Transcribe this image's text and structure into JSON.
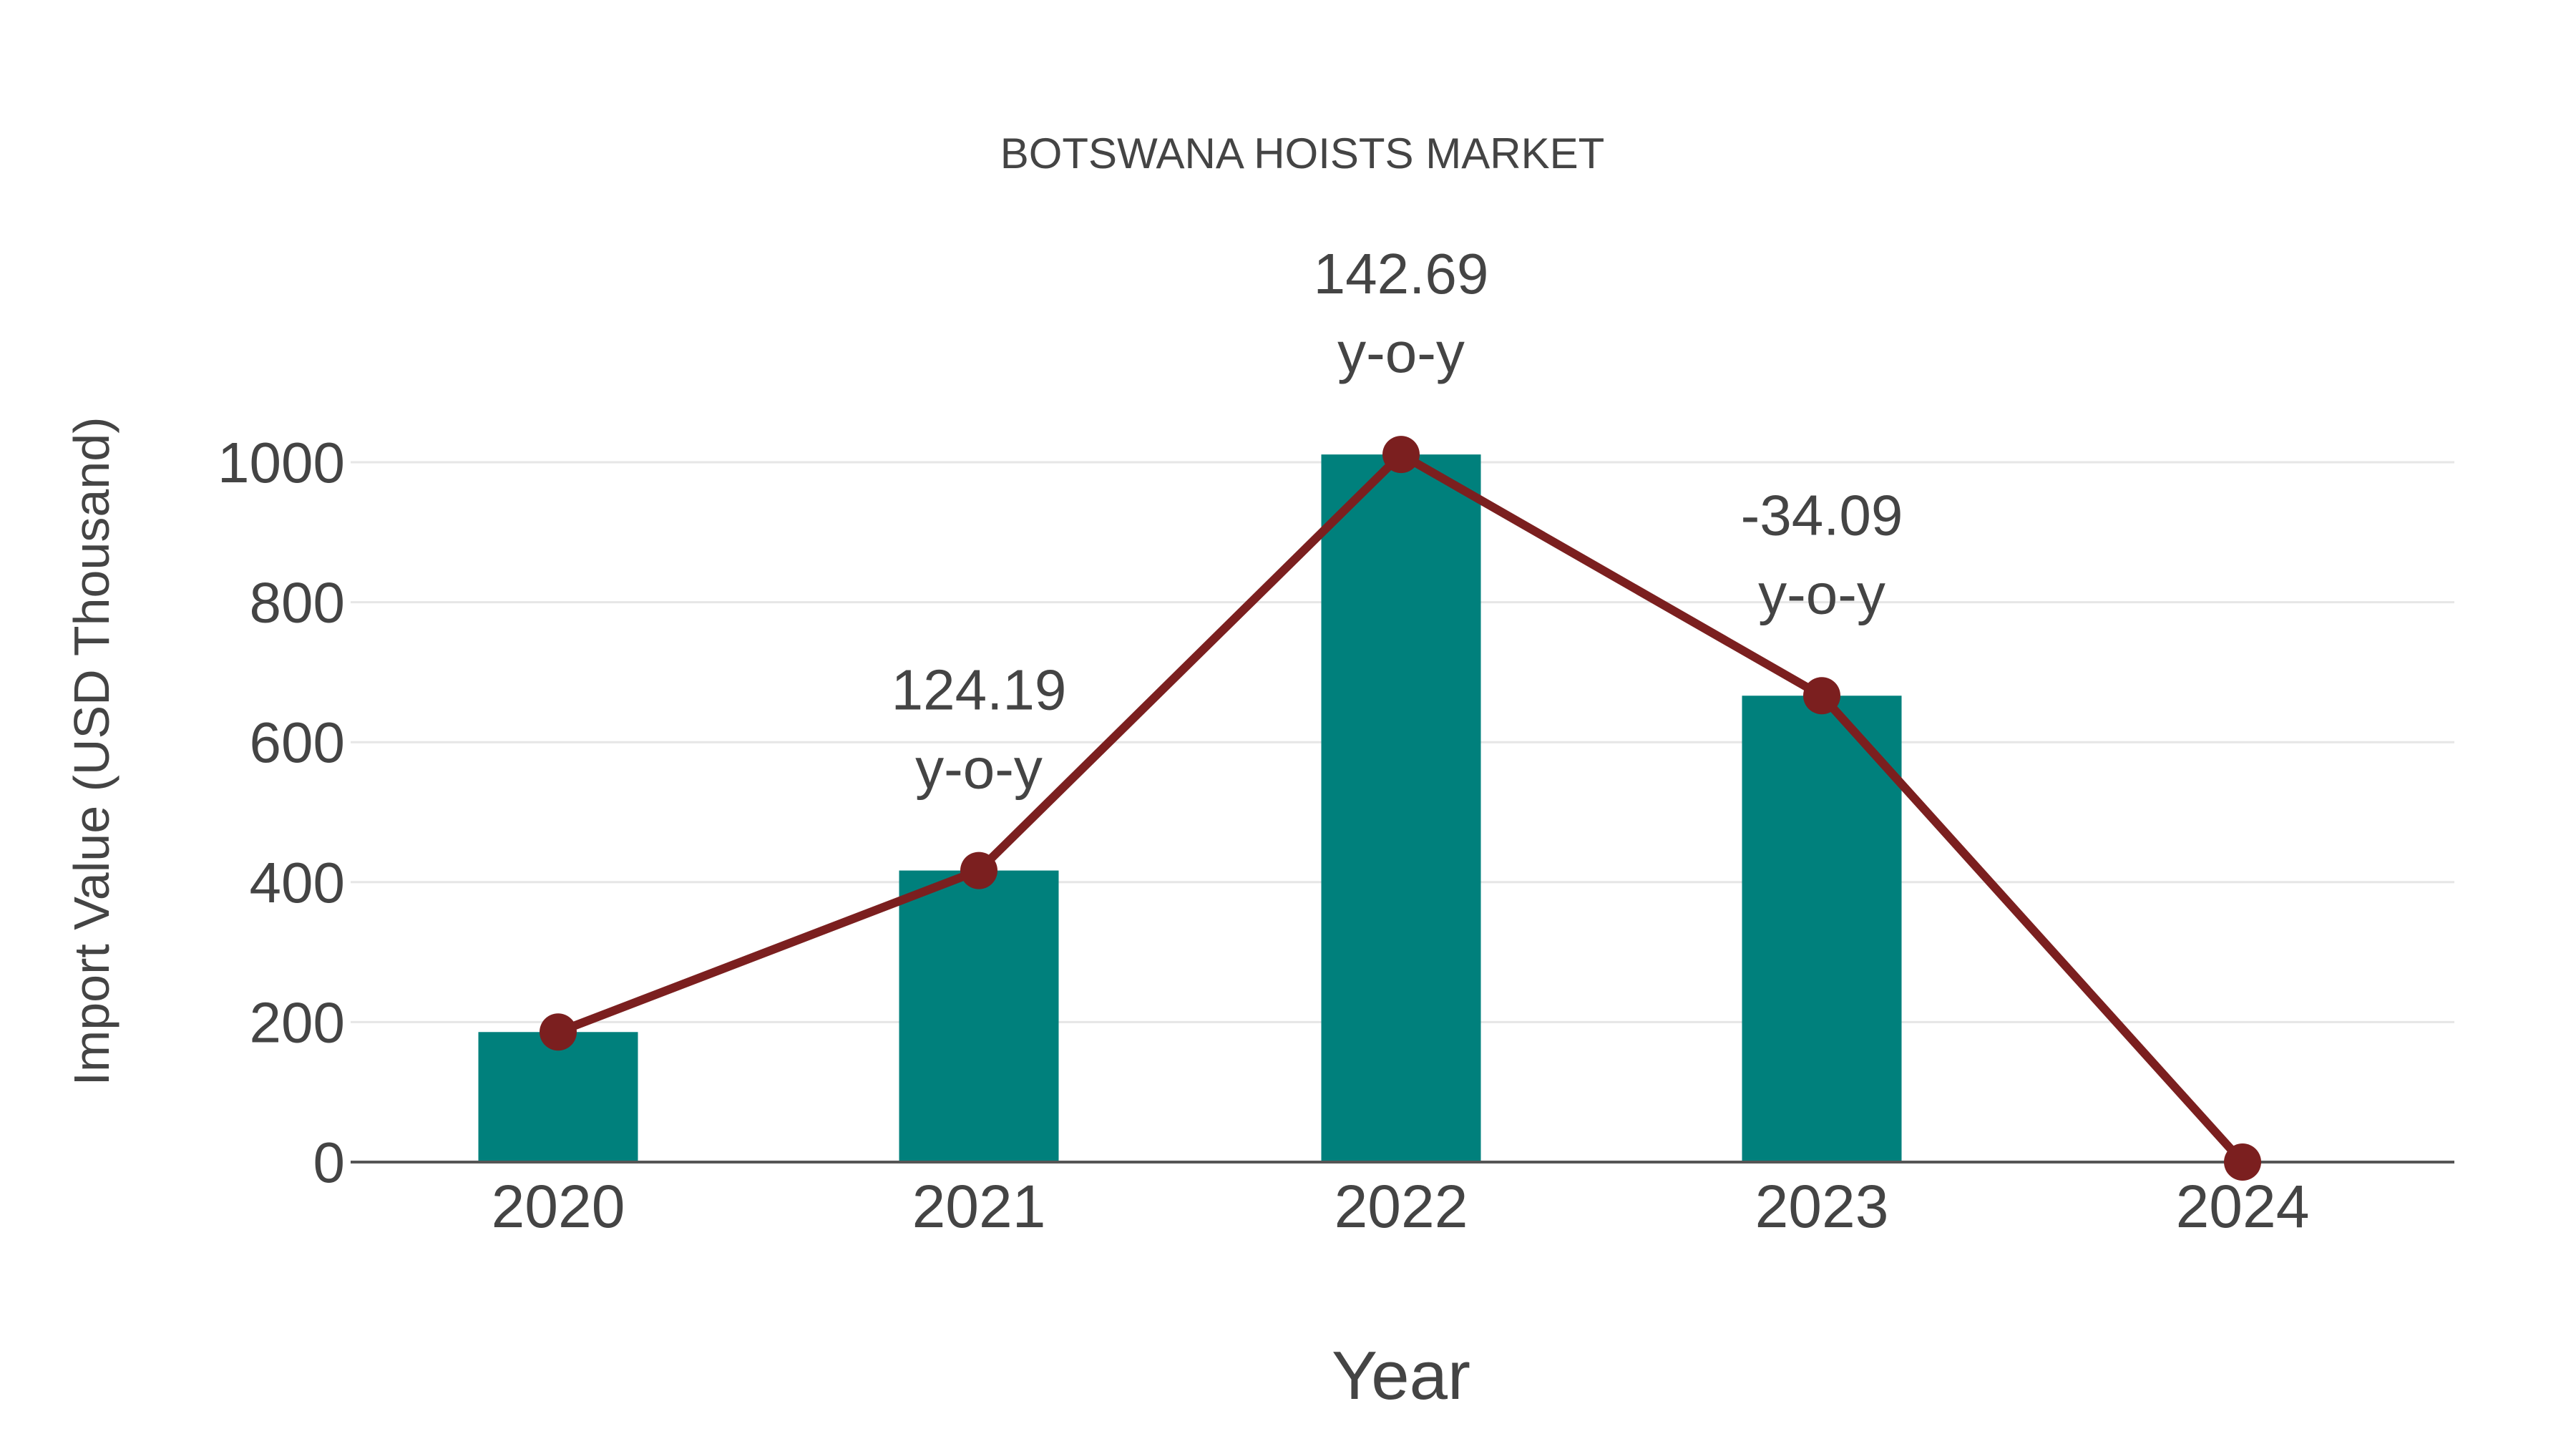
{
  "chart_data": {
    "type": "bar",
    "title": "BOTSWANA HOISTS MARKET",
    "xlabel": "Year",
    "ylabel": "Import Value (USD Thousand)",
    "categories": [
      "2020",
      "2021",
      "2022",
      "2023",
      "2024"
    ],
    "series": [
      {
        "name": "Import Value",
        "type": "bar",
        "color": "#00807c",
        "values": [
          185.8,
          416.6,
          1011.1,
          666.4,
          0
        ]
      },
      {
        "name": "Trend",
        "type": "line",
        "color": "#7b1f1f",
        "values": [
          185.8,
          416.6,
          1011.1,
          666.4,
          0
        ]
      }
    ],
    "annotations": [
      {
        "category": "2021",
        "value": "124.19",
        "suffix": "y-o-y"
      },
      {
        "category": "2022",
        "value": "142.69",
        "suffix": "y-o-y"
      },
      {
        "category": "2023",
        "value": "-34.09",
        "suffix": "y-o-y"
      }
    ],
    "yticks": [
      "0",
      "200",
      "400",
      "600",
      "800",
      "1000"
    ],
    "ylim": [
      0,
      1100
    ],
    "grid": true,
    "legend": "none"
  }
}
